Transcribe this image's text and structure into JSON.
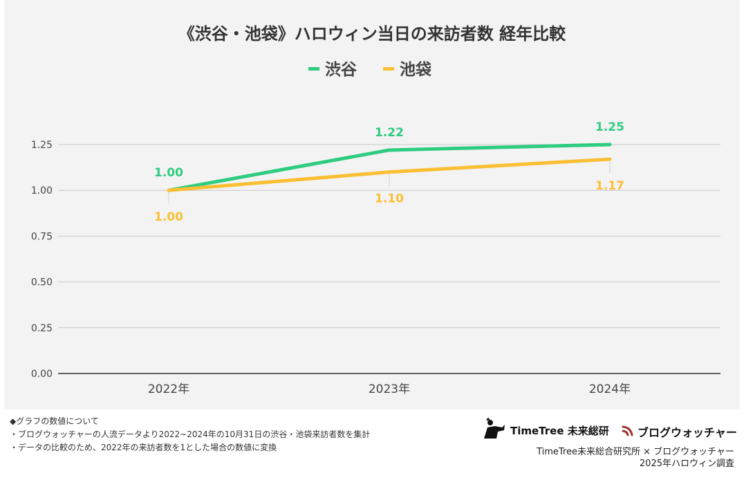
{
  "chart_data": {
    "type": "line",
    "title": "《渋谷・池袋》ハロウィン当日の来訪者数 経年比較",
    "categories": [
      "2022年",
      "2023年",
      "2024年"
    ],
    "series": [
      {
        "name": "渋谷",
        "color": "#2ecc7f",
        "values": [
          1.0,
          1.22,
          1.25
        ],
        "labels": [
          "1.00",
          "1.22",
          "1.25"
        ]
      },
      {
        "name": "池袋",
        "color": "#fbbf33",
        "values": [
          1.0,
          1.1,
          1.17
        ],
        "labels": [
          "1.00",
          "1.10",
          "1.17"
        ]
      }
    ],
    "yticks": [
      "0.00",
      "0.25",
      "0.50",
      "0.75",
      "1.00",
      "1.25"
    ],
    "ylim": [
      0,
      1.25
    ],
    "grid": true,
    "legend_position": "top-center"
  },
  "notes": {
    "heading": "◆グラフの数値について",
    "line1": "・ブログウォッチャーの人流データより2022~2024年の10月31日の渋谷・池袋来訪者数を集計",
    "line2": "・データの比較のため、2022年の来訪者数を1とした場合の数値に変換"
  },
  "logos": {
    "timetree": "TimeTree 未来総研",
    "blogwatcher": "ブログウォッチャー"
  },
  "credit": {
    "line1": "TimeTree未来総合研究所 × ブログウォッチャー",
    "line2": "2025年ハロウィン調査"
  },
  "icons": {
    "timetree": "tree-people-logo-icon",
    "blogwatcher": "signal-waves-logo-icon"
  }
}
